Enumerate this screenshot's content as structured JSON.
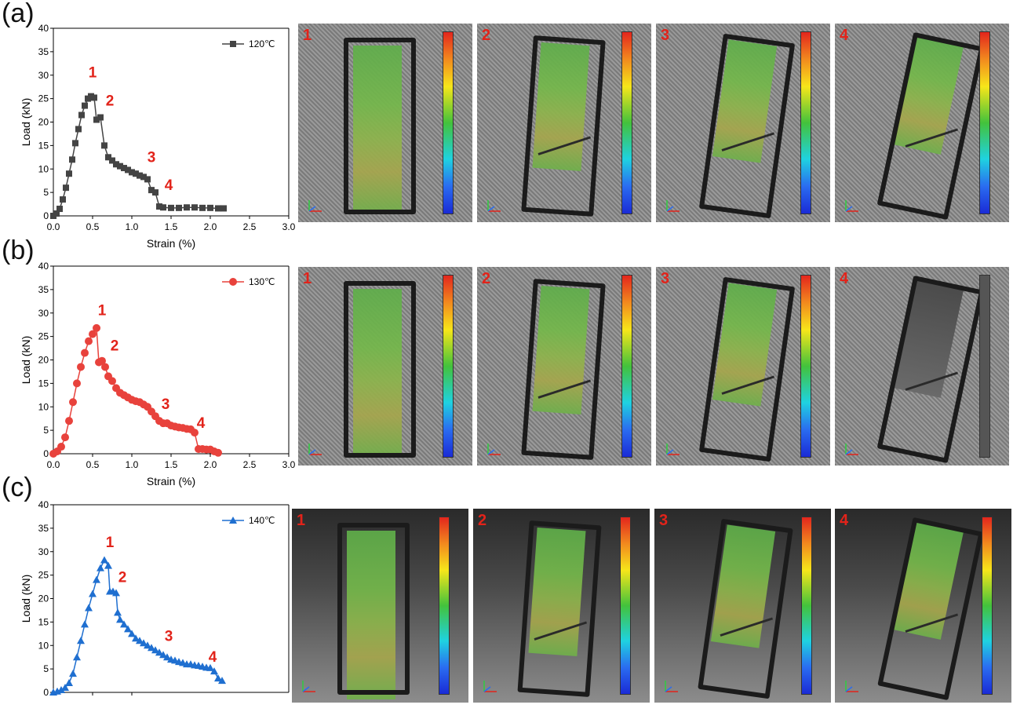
{
  "panels": [
    {
      "label": "(a)",
      "legend": "120℃",
      "color": "#444444",
      "marker": "square",
      "photo_numbers": [
        "1",
        "2",
        "3",
        "4"
      ]
    },
    {
      "label": "(b)",
      "legend": "130℃",
      "color": "#e8423c",
      "marker": "circle",
      "photo_numbers": [
        "1",
        "2",
        "3",
        "4"
      ]
    },
    {
      "label": "(c)",
      "legend": "140℃",
      "color": "#1f6fd0",
      "marker": "triangle",
      "photo_numbers": [
        "1",
        "2",
        "3",
        "4"
      ]
    }
  ],
  "annotation_color": "#e2231a",
  "chart_data": [
    {
      "type": "scatter",
      "xlabel": "Strain (%)",
      "ylabel": "Load (kN)",
      "xlim": [
        0,
        3.0
      ],
      "ylim": [
        0,
        40
      ],
      "xticks": [
        "0.0",
        "0.5",
        "1.0",
        "1.5",
        "2.0",
        "2.5",
        "3.0"
      ],
      "yticks": [
        "0",
        "5",
        "10",
        "15",
        "20",
        "25",
        "30",
        "35",
        "40"
      ],
      "series": [
        {
          "name": "120℃",
          "x": [
            0.0,
            0.04,
            0.08,
            0.12,
            0.16,
            0.2,
            0.24,
            0.28,
            0.32,
            0.36,
            0.4,
            0.44,
            0.48,
            0.52,
            0.55,
            0.6,
            0.65,
            0.7,
            0.75,
            0.8,
            0.85,
            0.9,
            0.95,
            1.0,
            1.05,
            1.1,
            1.15,
            1.2,
            1.25,
            1.3,
            1.35,
            1.4,
            1.5,
            1.6,
            1.7,
            1.8,
            1.9,
            2.0,
            2.1,
            2.17
          ],
          "y": [
            0.0,
            0.5,
            1.5,
            3.5,
            6.0,
            9.0,
            12.0,
            15.5,
            18.5,
            21.5,
            23.5,
            25.0,
            25.5,
            25.2,
            20.5,
            21.0,
            15.0,
            12.5,
            11.8,
            11.0,
            10.6,
            10.2,
            9.8,
            9.3,
            9.0,
            8.6,
            8.3,
            7.8,
            5.5,
            5.0,
            2.0,
            1.8,
            1.7,
            1.7,
            1.8,
            1.8,
            1.7,
            1.7,
            1.6,
            1.6
          ]
        }
      ],
      "annotations": [
        {
          "text": "1",
          "x": 0.5,
          "y": 29.5
        },
        {
          "text": "2",
          "x": 0.72,
          "y": 23.5
        },
        {
          "text": "3",
          "x": 1.25,
          "y": 11.5
        },
        {
          "text": "4",
          "x": 1.47,
          "y": 5.5
        }
      ]
    },
    {
      "type": "scatter",
      "xlabel": "Strain (%)",
      "ylabel": "Load (kN)",
      "xlim": [
        0,
        3.0
      ],
      "ylim": [
        0,
        40
      ],
      "xticks": [
        "0.0",
        "0.5",
        "1.0",
        "1.5",
        "2.0",
        "2.5",
        "3.0"
      ],
      "yticks": [
        "0",
        "5",
        "10",
        "15",
        "20",
        "25",
        "30",
        "35",
        "40"
      ],
      "series": [
        {
          "name": "130℃",
          "x": [
            0.0,
            0.05,
            0.1,
            0.15,
            0.2,
            0.25,
            0.3,
            0.35,
            0.4,
            0.45,
            0.5,
            0.55,
            0.58,
            0.62,
            0.66,
            0.7,
            0.75,
            0.8,
            0.85,
            0.9,
            0.95,
            1.0,
            1.05,
            1.1,
            1.15,
            1.2,
            1.25,
            1.3,
            1.35,
            1.4,
            1.45,
            1.5,
            1.55,
            1.6,
            1.65,
            1.7,
            1.75,
            1.8,
            1.85,
            1.9,
            1.95,
            2.0,
            2.05,
            2.1
          ],
          "y": [
            0.0,
            0.5,
            1.5,
            3.5,
            7.0,
            11.0,
            15.0,
            18.5,
            21.5,
            24.0,
            25.5,
            26.8,
            19.5,
            19.8,
            18.5,
            16.5,
            15.5,
            14.0,
            13.0,
            12.5,
            12.0,
            11.5,
            11.2,
            11.0,
            10.5,
            10.0,
            9.0,
            8.0,
            7.0,
            6.5,
            6.5,
            6.0,
            5.8,
            5.6,
            5.5,
            5.3,
            5.2,
            4.5,
            1.0,
            1.0,
            0.9,
            0.9,
            0.5,
            0.2
          ]
        }
      ],
      "annotations": [
        {
          "text": "1",
          "x": 0.62,
          "y": 29.5
        },
        {
          "text": "2",
          "x": 0.78,
          "y": 22.0
        },
        {
          "text": "3",
          "x": 1.43,
          "y": 9.5
        },
        {
          "text": "4",
          "x": 1.88,
          "y": 5.5
        }
      ]
    },
    {
      "type": "scatter",
      "xlabel": "",
      "ylabel": "Load (kN)",
      "xlim": [
        0,
        3.0
      ],
      "ylim": [
        0,
        40
      ],
      "xticks": [],
      "yticks": [
        "0",
        "5",
        "10",
        "15",
        "20",
        "25",
        "30",
        "35",
        "40"
      ],
      "series": [
        {
          "name": "140℃",
          "x": [
            0.0,
            0.05,
            0.1,
            0.15,
            0.2,
            0.25,
            0.3,
            0.35,
            0.4,
            0.45,
            0.5,
            0.55,
            0.6,
            0.65,
            0.7,
            0.72,
            0.76,
            0.8,
            0.82,
            0.85,
            0.9,
            0.95,
            1.0,
            1.05,
            1.1,
            1.15,
            1.2,
            1.25,
            1.3,
            1.35,
            1.4,
            1.45,
            1.5,
            1.55,
            1.6,
            1.65,
            1.7,
            1.75,
            1.8,
            1.85,
            1.9,
            1.95,
            2.0,
            2.05,
            2.1,
            2.15
          ],
          "y": [
            0.0,
            0.2,
            0.5,
            1.0,
            2.0,
            4.0,
            7.5,
            11.0,
            14.5,
            18.0,
            21.0,
            24.0,
            26.5,
            28.2,
            27.0,
            21.5,
            21.5,
            21.2,
            17.0,
            15.5,
            14.5,
            13.5,
            12.5,
            11.5,
            11.0,
            10.5,
            10.0,
            9.5,
            9.0,
            8.5,
            8.0,
            7.5,
            7.0,
            6.8,
            6.5,
            6.3,
            6.0,
            6.0,
            5.8,
            5.7,
            5.5,
            5.3,
            5.2,
            4.5,
            3.0,
            2.5
          ]
        }
      ],
      "annotations": [
        {
          "text": "1",
          "x": 0.72,
          "y": 31.0
        },
        {
          "text": "2",
          "x": 0.88,
          "y": 23.5
        },
        {
          "text": "3",
          "x": 1.47,
          "y": 11.0
        },
        {
          "text": "4",
          "x": 2.03,
          "y": 6.5
        }
      ]
    }
  ]
}
